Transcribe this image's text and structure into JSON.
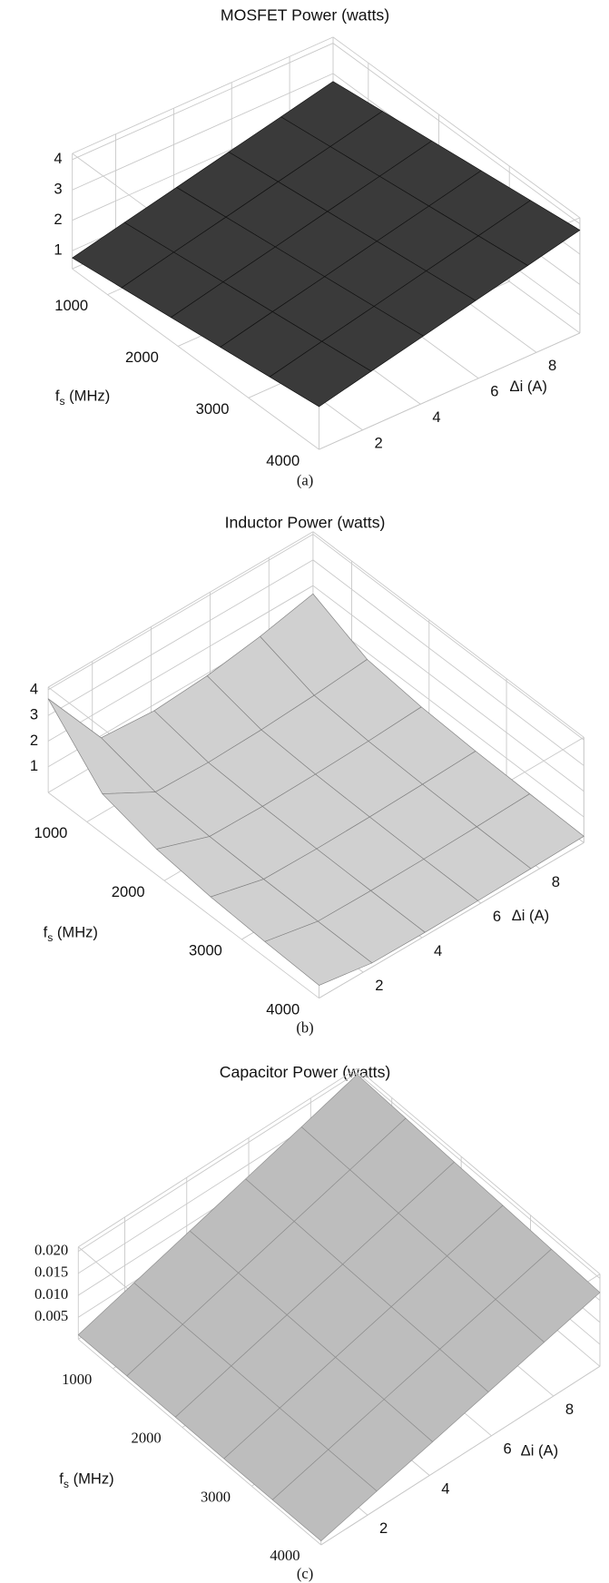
{
  "chart_data": [
    {
      "type": "surface",
      "title": "MOSFET Power (watts)",
      "caption": "(a)",
      "xlabel": {
        "main": "f",
        "sub": "s",
        "unit": " (MHz)"
      },
      "ylabel": "Δi (A)",
      "xlim": [
        500,
        4000
      ],
      "xticks": [
        1000,
        2000,
        3000,
        4000
      ],
      "ylim": [
        0.5,
        9.5
      ],
      "yticks": [
        2,
        4,
        6,
        8
      ],
      "zlim": [
        0.4,
        4.2
      ],
      "zticks": [
        1,
        2,
        3,
        4
      ],
      "color": "#3a3a3a",
      "edge_color": "#111111",
      "x": [
        500,
        1200,
        1900,
        2600,
        3300,
        4000
      ],
      "y": [
        0.5,
        2.3,
        4.1,
        5.9,
        7.7,
        9.5
      ],
      "z": [
        [
          0.76,
          1.16,
          1.55,
          1.95,
          2.34,
          2.74
        ],
        [
          0.97,
          1.37,
          1.76,
          2.16,
          2.55,
          2.95
        ],
        [
          1.18,
          1.58,
          1.97,
          2.37,
          2.76,
          3.16
        ],
        [
          1.39,
          1.79,
          2.18,
          2.58,
          2.97,
          3.37
        ],
        [
          1.6,
          2.0,
          2.39,
          2.79,
          3.18,
          3.58
        ],
        [
          1.81,
          2.21,
          2.6,
          3.0,
          3.39,
          3.79
        ]
      ]
    },
    {
      "type": "surface",
      "title": "Inductor Power (watts)",
      "caption": "(b)",
      "xlabel": {
        "main": "f",
        "sub": "s",
        "unit": " (MHz)"
      },
      "ylabel": "Δi (A)",
      "xlim": [
        500,
        4000
      ],
      "xticks": [
        1000,
        2000,
        3000,
        4000
      ],
      "ylim": [
        0.5,
        9.5
      ],
      "yticks": [
        2,
        4,
        6,
        8
      ],
      "zlim": [
        0,
        4.1
      ],
      "zticks": [
        1,
        2,
        3,
        4
      ],
      "color": "#d0d0d0",
      "edge_color": "#808080",
      "x": [
        500,
        1200,
        1900,
        2600,
        3300,
        4000
      ],
      "y": [
        0.5,
        2.3,
        4.1,
        5.9,
        7.7,
        9.5
      ],
      "z": [
        [
          3.65,
          0.92,
          0.76,
          0.91,
          1.23,
          1.68
        ],
        [
          1.55,
          0.41,
          0.35,
          0.41,
          0.54,
          0.73
        ],
        [
          1.0,
          0.28,
          0.24,
          0.28,
          0.36,
          0.48
        ],
        [
          0.74,
          0.22,
          0.19,
          0.22,
          0.28,
          0.36
        ],
        [
          0.6,
          0.18,
          0.16,
          0.18,
          0.23,
          0.3
        ],
        [
          0.5,
          0.16,
          0.14,
          0.16,
          0.2,
          0.25
        ]
      ]
    },
    {
      "type": "surface",
      "title": "Capacitor Power (watts)",
      "caption": "(c)",
      "xlabel": {
        "main": "f",
        "sub": "s",
        "unit": " (MHz)"
      },
      "ylabel": "Δi (A)",
      "xlim": [
        500,
        4000
      ],
      "xticks": [
        1000,
        2000,
        3000,
        4000
      ],
      "ylim": [
        0.5,
        9.5
      ],
      "yticks": [
        2,
        4,
        6,
        8
      ],
      "zlim": [
        0,
        0.021
      ],
      "zticks": [
        0.005,
        {
          "value": 0.01,
          "label": "0.010"
        },
        0.015,
        {
          "value": 0.02,
          "label": "0.020"
        }
      ],
      "color": "#bdbdbd",
      "edge_color": "#8c8c8c",
      "x": [
        500,
        1200,
        1900,
        2600,
        3300,
        4000
      ],
      "y": [
        0.5,
        2.3,
        4.1,
        5.9,
        7.7,
        9.5
      ],
      "z": [
        [
          0.001,
          0.0047,
          0.0084,
          0.0121,
          0.0158,
          0.0196
        ],
        [
          0.001,
          0.0046,
          0.0082,
          0.0118,
          0.0154,
          0.019
        ],
        [
          0.001,
          0.0045,
          0.008,
          0.0114,
          0.0149,
          0.0184
        ],
        [
          0.0009,
          0.0043,
          0.0077,
          0.0111,
          0.0145,
          0.0179
        ],
        [
          0.0009,
          0.0042,
          0.0075,
          0.0108,
          0.014,
          0.0173
        ],
        [
          0.0009,
          0.0041,
          0.0072,
          0.0104,
          0.0136,
          0.0168
        ]
      ]
    }
  ]
}
